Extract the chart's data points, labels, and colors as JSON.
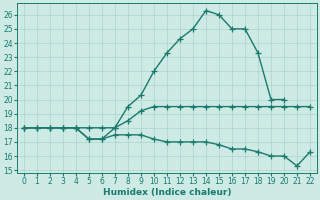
{
  "xlabel": "Humidex (Indice chaleur)",
  "xlim": [
    -0.5,
    22.5
  ],
  "ylim": [
    14.8,
    26.8
  ],
  "yticks": [
    15,
    16,
    17,
    18,
    19,
    20,
    21,
    22,
    23,
    24,
    25,
    26
  ],
  "xticks": [
    0,
    1,
    2,
    3,
    4,
    5,
    6,
    7,
    8,
    9,
    10,
    11,
    12,
    13,
    14,
    15,
    16,
    17,
    18,
    19,
    20,
    21,
    22
  ],
  "bg_color": "#cdeae4",
  "grid_color": "#aad4ce",
  "line_color": "#1a7a6e",
  "line_width": 1.0,
  "marker": "+",
  "marker_size": 4,
  "marker_lw": 0.9,
  "curves": [
    {
      "x": [
        0,
        1,
        2,
        3,
        4,
        5,
        6,
        7,
        8,
        9,
        10,
        11,
        12,
        13,
        14,
        15,
        16,
        17,
        18,
        19,
        20
      ],
      "y": [
        18,
        18,
        18,
        18,
        18,
        18,
        18,
        18,
        19.5,
        20.3,
        22,
        23.3,
        24.3,
        25,
        26.3,
        26,
        25,
        25,
        23.3,
        20,
        20
      ]
    },
    {
      "x": [
        0,
        1,
        2,
        3,
        4,
        5,
        6,
        7,
        8,
        9,
        10,
        11,
        12,
        13,
        14,
        15,
        16,
        17,
        18,
        19,
        20,
        21,
        22
      ],
      "y": [
        18,
        18,
        18,
        18,
        18,
        17.2,
        17.2,
        18,
        18.5,
        19.2,
        19.5,
        19.5,
        19.5,
        19.5,
        19.5,
        19.5,
        19.5,
        19.5,
        19.5,
        19.5,
        19.5,
        19.5,
        19.5
      ]
    },
    {
      "x": [
        0,
        1,
        2,
        3,
        4,
        5,
        6,
        7,
        8,
        9,
        10,
        11,
        12,
        13,
        14,
        15,
        16,
        17,
        18,
        19,
        20,
        21,
        22
      ],
      "y": [
        18,
        18,
        18,
        18,
        18,
        17.2,
        17.2,
        17.5,
        17.5,
        17.5,
        17.2,
        17,
        17,
        17,
        17,
        16.8,
        16.5,
        16.5,
        16.3,
        16,
        16,
        15.3,
        16.3
      ]
    }
  ]
}
